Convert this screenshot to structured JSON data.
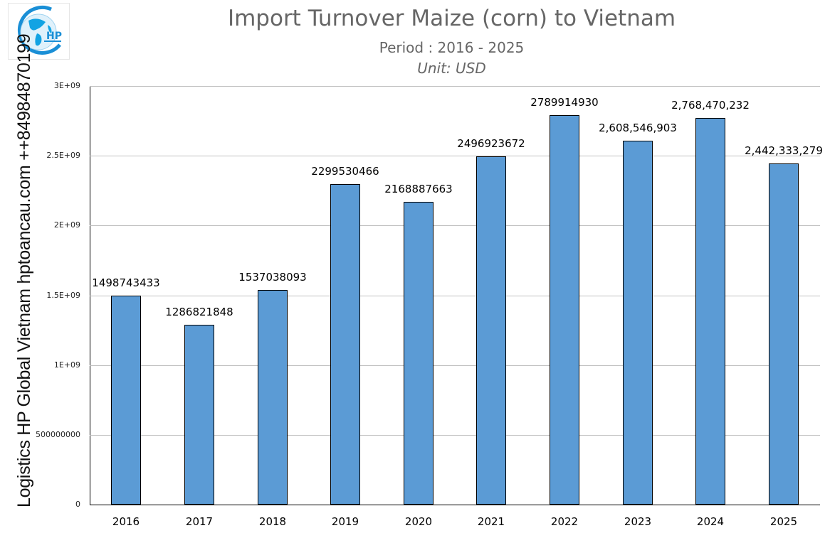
{
  "header": {
    "title": "Import Turnover Maize (corn) to Vietnam",
    "subtitle": "Period : 2016 - 2025",
    "unit": "Unit: USD"
  },
  "watermark": {
    "side_text": "Logistics HP Global Vietnam hptoancau.com ++84984870199",
    "logo_text": "HP"
  },
  "colors": {
    "bar": "#5b9bd5",
    "title": "#666666",
    "grid": "#bfbfbf"
  },
  "chart_data": {
    "type": "bar",
    "title": "Import Turnover Maize (corn) to Vietnam",
    "subtitle": "Period : 2016 - 2025",
    "unit": "Unit: USD",
    "xlabel": "",
    "ylabel": "",
    "ylim": [
      0,
      3000000000
    ],
    "grid": true,
    "legend": null,
    "y_ticks": [
      "0",
      "500000000",
      "1E+09",
      "1.5E+09",
      "2E+09",
      "2.5E+09",
      "3E+09"
    ],
    "y_tick_values": [
      0,
      500000000,
      1000000000,
      1500000000,
      2000000000,
      2500000000,
      3000000000
    ],
    "categories": [
      "2016",
      "2017",
      "2018",
      "2019",
      "2020",
      "2021",
      "2022",
      "2023",
      "2024",
      "2025"
    ],
    "values": [
      1498743433,
      1286821848,
      1537038093,
      2299530466,
      2168887663,
      2496923672,
      2789914930,
      2608546903,
      2768470232,
      2442333279
    ],
    "data_labels": [
      "1498743433",
      "1286821848",
      "1537038093",
      "2299530466",
      "2168887663",
      "2496923672",
      "2789914930",
      "2,608,546,903",
      "2,768,470,232",
      "2,442,333,279"
    ]
  }
}
